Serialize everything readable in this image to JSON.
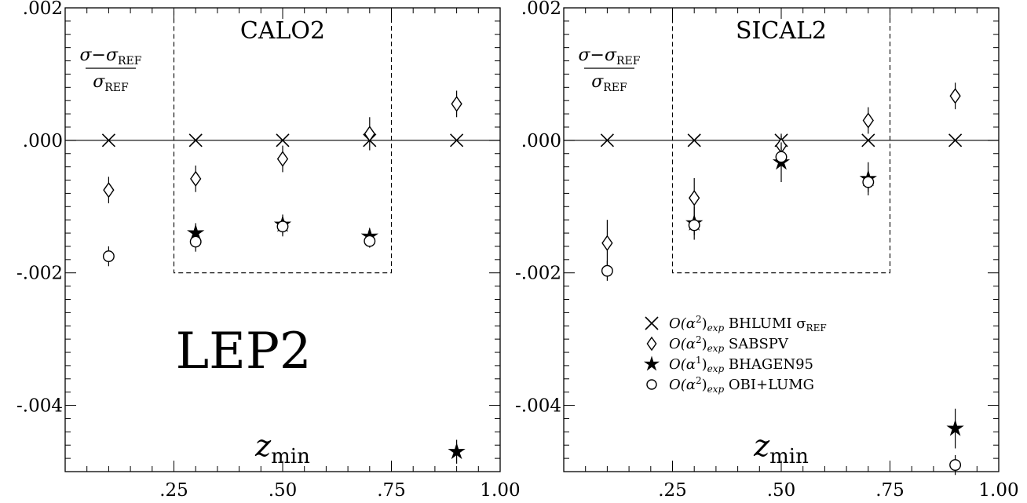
{
  "chart_data": [
    {
      "type": "scatter",
      "title": "CALO2",
      "big_label": "LEP2",
      "xlabel": {
        "main": "z",
        "sub": "min"
      },
      "ylabel": {
        "num_sigma": "σ",
        "num_minus": "−",
        "num_sigma_ref": "σ",
        "ref_sub": "REF",
        "den_sigma": "σ"
      },
      "xlim": [
        0.0,
        1.0
      ],
      "ylim": [
        -0.005,
        0.002
      ],
      "xticks": [
        ".25",
        ".50",
        ".75",
        "1.00"
      ],
      "yticks": [
        ".002",
        ".000",
        "-.002",
        "-.004"
      ],
      "ytick_values": [
        0.002,
        0.0,
        -0.002,
        -0.004
      ],
      "xtick_values": [
        0.25,
        0.5,
        0.75,
        1.0
      ],
      "dashed_box": {
        "x": [
          0.25,
          0.75
        ],
        "y": [
          -0.002,
          0.002
        ]
      },
      "series": [
        {
          "name": "BHLUMI σREF",
          "marker": "cross",
          "x": [
            0.1,
            0.3,
            0.5,
            0.7,
            0.9
          ],
          "y": [
            0.0,
            0.0,
            0.0,
            0.0,
            0.0
          ],
          "err": [
            0,
            0,
            0,
            0,
            0
          ]
        },
        {
          "name": "SABSPV",
          "marker": "diamond",
          "x": [
            0.1,
            0.3,
            0.5,
            0.7,
            0.9
          ],
          "y": [
            -0.00075,
            -0.00058,
            -0.00028,
            0.0001,
            0.00055
          ],
          "err": [
            0.0002,
            0.0002,
            0.0002,
            0.00025,
            0.0002
          ]
        },
        {
          "name": "BHAGEN95",
          "marker": "star",
          "x": [
            0.3,
            0.5,
            0.7,
            0.9
          ],
          "y": [
            -0.0014,
            -0.00127,
            -0.00145,
            -0.0047
          ],
          "err": [
            0.00015,
            0.00015,
            0.00012,
            0.00018
          ]
        },
        {
          "name": "OBI+LUMG",
          "marker": "circle",
          "x": [
            0.1,
            0.3,
            0.5,
            0.7
          ],
          "y": [
            -0.00175,
            -0.00153,
            -0.0013,
            -0.00152
          ],
          "err": [
            0.00015,
            0.00015,
            0.00015,
            0.0001
          ]
        }
      ]
    },
    {
      "type": "scatter",
      "title": "SICAL2",
      "xlabel": {
        "main": "z",
        "sub": "min"
      },
      "ylabel": {
        "num_sigma": "σ",
        "num_minus": "−",
        "num_sigma_ref": "σ",
        "ref_sub": "REF",
        "den_sigma": "σ"
      },
      "xlim": [
        0.0,
        1.0
      ],
      "ylim": [
        -0.005,
        0.002
      ],
      "xticks": [
        ".25",
        ".50",
        ".75",
        "1.00"
      ],
      "yticks": [
        ".002",
        ".000",
        "-.002",
        "-.004"
      ],
      "ytick_values": [
        0.002,
        0.0,
        -0.002,
        -0.004
      ],
      "xtick_values": [
        0.25,
        0.5,
        0.75,
        1.0
      ],
      "dashed_box": {
        "x": [
          0.25,
          0.75
        ],
        "y": [
          -0.002,
          0.002
        ]
      },
      "legend_placement": "lower-middle",
      "legend": [
        {
          "marker": "cross",
          "prefix": "O(α",
          "power": "2",
          "suffix": ")",
          "sub": "exp",
          "label": "BHLUMI σ",
          "label_sub": "REF"
        },
        {
          "marker": "diamond",
          "prefix": "O(α",
          "power": "2",
          "suffix": ")",
          "sub": "exp",
          "label": "SABSPV",
          "label_sub": ""
        },
        {
          "marker": "star",
          "prefix": "O(α",
          "power": "1",
          "suffix": ")",
          "sub": "exp",
          "label": "BHAGEN95",
          "label_sub": ""
        },
        {
          "marker": "circle",
          "prefix": "O(α",
          "power": "2",
          "suffix": ")",
          "sub": "exp",
          "label": "OBI+LUMG",
          "label_sub": ""
        }
      ],
      "series": [
        {
          "name": "BHLUMI σREF",
          "marker": "cross",
          "x": [
            0.1,
            0.3,
            0.5,
            0.7,
            0.9
          ],
          "y": [
            0.0,
            0.0,
            0.0,
            0.0,
            0.0
          ],
          "err": [
            0,
            0,
            0.0001,
            0,
            0
          ]
        },
        {
          "name": "SABSPV",
          "marker": "diamond",
          "x": [
            0.1,
            0.3,
            0.5,
            0.7,
            0.9
          ],
          "y": [
            -0.00155,
            -0.00087,
            -8e-05,
            0.0003,
            0.00067
          ],
          "err": [
            0.00035,
            0.0003,
            0.00015,
            0.0002,
            0.0002
          ]
        },
        {
          "name": "BHAGEN95",
          "marker": "star",
          "x": [
            0.3,
            0.5,
            0.7,
            0.9
          ],
          "y": [
            -0.00125,
            -0.00033,
            -0.00058,
            -0.00435
          ],
          "err": [
            0.00025,
            0.0003,
            0.00025,
            0.0003
          ]
        },
        {
          "name": "OBI+LUMG",
          "marker": "circle",
          "x": [
            0.1,
            0.3,
            0.5,
            0.7,
            0.9
          ],
          "y": [
            -0.00197,
            -0.00128,
            -0.00025,
            -0.00063,
            -0.0049
          ],
          "err": [
            0.00015,
            0.00015,
            0.00015,
            0.00015,
            0.00015
          ]
        }
      ]
    }
  ]
}
